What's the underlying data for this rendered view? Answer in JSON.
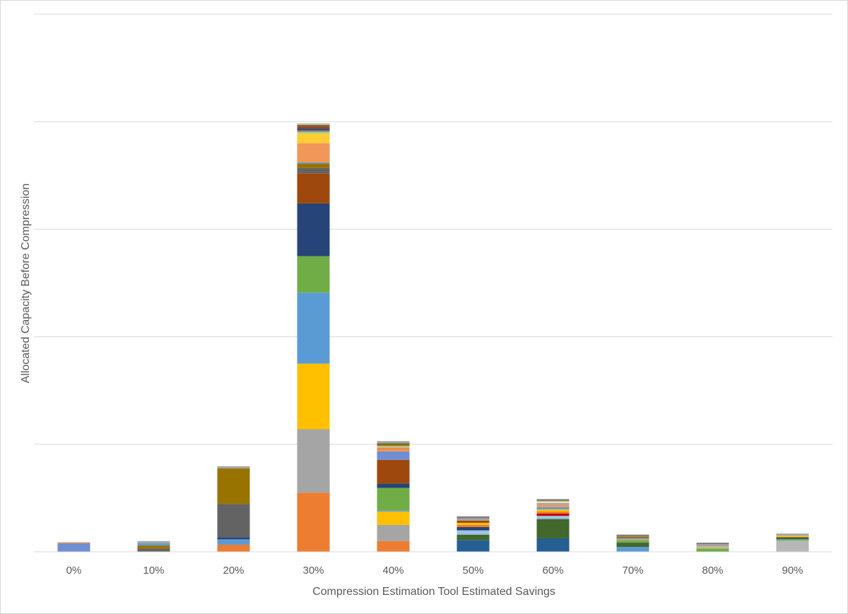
{
  "chart_data": {
    "type": "bar",
    "stacked": true,
    "title": "",
    "xlabel": "Compression Estimation Tool Estimated Savings",
    "ylabel": "Allocated Capacity Before Compression",
    "ylim": [
      0,
      5
    ],
    "y_tick_labels_shown": false,
    "grid": "horizontal",
    "legend": "none",
    "categories": [
      "0%",
      "10%",
      "20%",
      "30%",
      "40%",
      "50%",
      "60%",
      "70%",
      "80%",
      "90%"
    ],
    "stacks": [
      [
        {
          "color": "#6F8FD0",
          "value": 0.08
        },
        {
          "color": "#F1975A",
          "value": 0.01
        }
      ],
      [
        {
          "color": "#636363",
          "value": 0.03
        },
        {
          "color": "#997300",
          "value": 0.03
        },
        {
          "color": "#5B9BD5",
          "value": 0.02
        },
        {
          "color": "#A5A5A5",
          "value": 0.02
        }
      ],
      [
        {
          "color": "#ED7D31",
          "value": 0.066
        },
        {
          "color": "#5B9BD5",
          "value": 0.05
        },
        {
          "color": "#264478",
          "value": 0.02
        },
        {
          "color": "#636363",
          "value": 0.31
        },
        {
          "color": "#997300",
          "value": 0.33
        },
        {
          "color": "#A5A5A5",
          "value": 0.02
        }
      ],
      [
        {
          "color": "#ED7D31",
          "value": 0.55
        },
        {
          "color": "#A5A5A5",
          "value": 0.59
        },
        {
          "color": "#FFC000",
          "value": 0.61
        },
        {
          "color": "#5B9BD5",
          "value": 0.66
        },
        {
          "color": "#70AD47",
          "value": 0.34
        },
        {
          "color": "#264478",
          "value": 0.49
        },
        {
          "color": "#9E480E",
          "value": 0.28
        },
        {
          "color": "#636363",
          "value": 0.05
        },
        {
          "color": "#997300",
          "value": 0.04
        },
        {
          "color": "#5B9BD5",
          "value": 0.01
        },
        {
          "color": "#F1975A",
          "value": 0.18
        },
        {
          "color": "#FFCD33",
          "value": 0.09
        },
        {
          "color": "#A9D18E",
          "value": 0.015
        },
        {
          "color": "#7F7F7F",
          "value": 0.015
        },
        {
          "color": "#264478",
          "value": 0.015
        },
        {
          "color": "#9E480E",
          "value": 0.02
        },
        {
          "color": "#636363",
          "value": 0.015
        },
        {
          "color": "#C9B98A",
          "value": 0.015
        }
      ],
      [
        {
          "color": "#ED7D31",
          "value": 0.1
        },
        {
          "color": "#A5A5A5",
          "value": 0.15
        },
        {
          "color": "#FFC000",
          "value": 0.125
        },
        {
          "color": "#5B9BD5",
          "value": 0.01
        },
        {
          "color": "#70AD47",
          "value": 0.21
        },
        {
          "color": "#264478",
          "value": 0.04
        },
        {
          "color": "#9E480E",
          "value": 0.22
        },
        {
          "color": "#6F8FD0",
          "value": 0.08
        },
        {
          "color": "#F1975A",
          "value": 0.015
        },
        {
          "color": "#ED7D31",
          "value": 0.015
        },
        {
          "color": "#C9B98A",
          "value": 0.02
        },
        {
          "color": "#997300",
          "value": 0.015
        },
        {
          "color": "#43682B",
          "value": 0.01
        },
        {
          "color": "#A5A5A5",
          "value": 0.02
        }
      ],
      [
        {
          "color": "#255E91",
          "value": 0.11
        },
        {
          "color": "#43682B",
          "value": 0.05
        },
        {
          "color": "#9DC3E6",
          "value": 0.04
        },
        {
          "color": "#264478",
          "value": 0.03
        },
        {
          "color": "#ED7D31",
          "value": 0.02
        },
        {
          "color": "#FFC000",
          "value": 0.02
        },
        {
          "color": "#9E480E",
          "value": 0.02
        },
        {
          "color": "#A5A5A5",
          "value": 0.02
        },
        {
          "color": "#7F7F7F",
          "value": 0.02
        }
      ],
      [
        {
          "color": "#255E91",
          "value": 0.125
        },
        {
          "color": "#43682B",
          "value": 0.18
        },
        {
          "color": "#9DC3E6",
          "value": 0.03
        },
        {
          "color": "#C00000",
          "value": 0.02
        },
        {
          "color": "#ED7D31",
          "value": 0.02
        },
        {
          "color": "#FFC000",
          "value": 0.02
        },
        {
          "color": "#5B9BD5",
          "value": 0.02
        },
        {
          "color": "#F1975A",
          "value": 0.02
        },
        {
          "color": "#A5A5A5",
          "value": 0.02
        },
        {
          "color": "#FFE699",
          "value": 0.015
        },
        {
          "color": "#7F7F7F",
          "value": 0.02
        }
      ],
      [
        {
          "color": "#5B9BD5",
          "value": 0.045
        },
        {
          "color": "#43682B",
          "value": 0.04
        },
        {
          "color": "#70AD47",
          "value": 0.02
        },
        {
          "color": "#A5A5A5",
          "value": 0.02
        },
        {
          "color": "#997300",
          "value": 0.015
        },
        {
          "color": "#7F7F7F",
          "value": 0.02
        }
      ],
      [
        {
          "color": "#70AD47",
          "value": 0.03
        },
        {
          "color": "#C9B98A",
          "value": 0.02
        },
        {
          "color": "#A5A5A5",
          "value": 0.02
        },
        {
          "color": "#7F7F7F",
          "value": 0.015
        }
      ],
      [
        {
          "color": "#B7B7B7",
          "value": 0.105
        },
        {
          "color": "#70AD47",
          "value": 0.015
        },
        {
          "color": "#264478",
          "value": 0.015
        },
        {
          "color": "#FFC000",
          "value": 0.015
        },
        {
          "color": "#A5A5A5",
          "value": 0.02
        }
      ]
    ]
  }
}
